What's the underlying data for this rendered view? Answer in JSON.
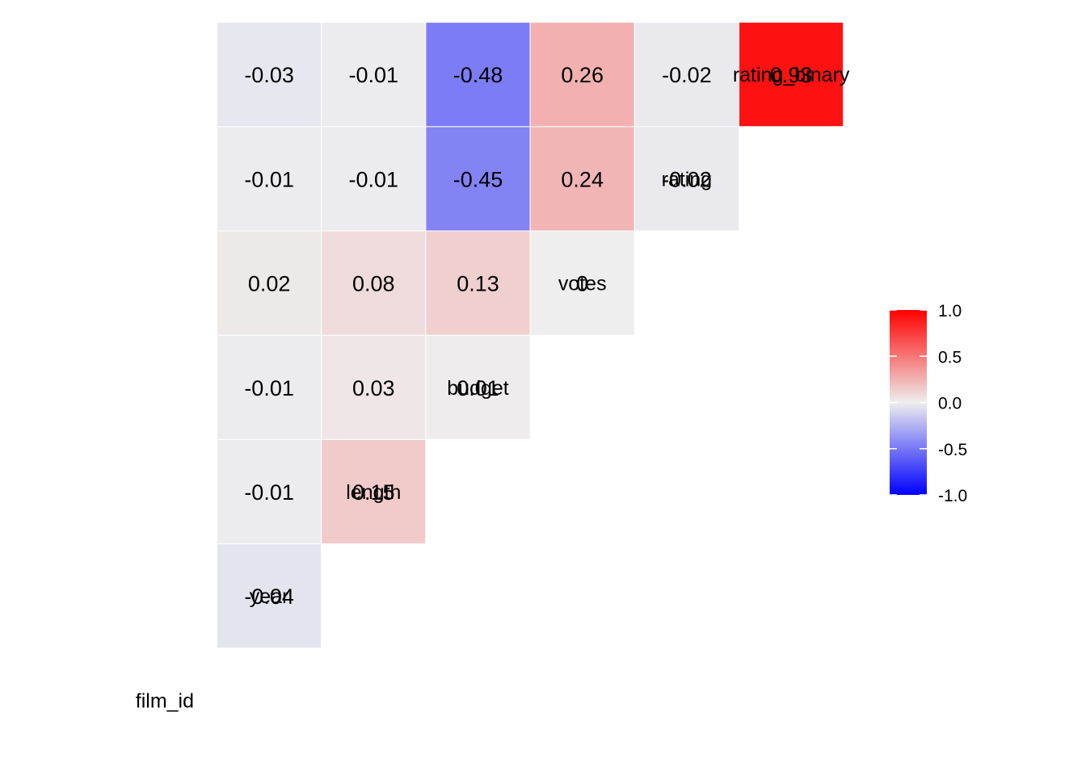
{
  "chart_data": {
    "type": "heatmap",
    "variables": [
      "film_id",
      "year",
      "length",
      "budget",
      "votes",
      "rating",
      "rating_binary"
    ],
    "cells": [
      {
        "row": "year",
        "col": "film_id",
        "value": -0.04,
        "label": "-0.04"
      },
      {
        "row": "length",
        "col": "film_id",
        "value": -0.01,
        "label": "-0.01"
      },
      {
        "row": "budget",
        "col": "film_id",
        "value": -0.01,
        "label": "-0.01"
      },
      {
        "row": "votes",
        "col": "film_id",
        "value": 0.02,
        "label": "0.02"
      },
      {
        "row": "rating",
        "col": "film_id",
        "value": -0.01,
        "label": "-0.01"
      },
      {
        "row": "rating_binary",
        "col": "film_id",
        "value": -0.03,
        "label": "-0.03"
      },
      {
        "row": "length",
        "col": "year",
        "value": 0.15,
        "label": "0.15"
      },
      {
        "row": "budget",
        "col": "year",
        "value": 0.03,
        "label": "0.03"
      },
      {
        "row": "votes",
        "col": "year",
        "value": 0.08,
        "label": "0.08"
      },
      {
        "row": "rating",
        "col": "year",
        "value": -0.01,
        "label": "-0.01"
      },
      {
        "row": "rating_binary",
        "col": "year",
        "value": -0.01,
        "label": "-0.01"
      },
      {
        "row": "budget",
        "col": "length",
        "value": 0.01,
        "label": "0.01"
      },
      {
        "row": "votes",
        "col": "length",
        "value": 0.13,
        "label": "0.13"
      },
      {
        "row": "rating",
        "col": "length",
        "value": -0.45,
        "label": "-0.45"
      },
      {
        "row": "rating_binary",
        "col": "length",
        "value": -0.48,
        "label": "-0.48"
      },
      {
        "row": "votes",
        "col": "budget",
        "value": 0,
        "label": "0"
      },
      {
        "row": "rating",
        "col": "budget",
        "value": 0.24,
        "label": "0.24"
      },
      {
        "row": "rating_binary",
        "col": "budget",
        "value": 0.26,
        "label": "0.26"
      },
      {
        "row": "rating",
        "col": "votes",
        "value": -0.02,
        "label": "-0.02"
      },
      {
        "row": "rating_binary",
        "col": "votes",
        "value": -0.02,
        "label": "-0.02"
      },
      {
        "row": "rating_binary",
        "col": "rating",
        "value": 0.93,
        "label": "0.93"
      }
    ],
    "color_scale": {
      "low": "#0000ff",
      "mid": "#eeeeee",
      "high": "#ff0000",
      "limits": [
        -1,
        1
      ]
    },
    "legend": {
      "position": "right",
      "ticks": [
        1.0,
        0.5,
        0.0,
        -0.5,
        -1.0
      ],
      "tick_labels": [
        "1.0",
        "0.5",
        "0.0",
        "-0.5",
        "-1.0"
      ]
    },
    "grid": false
  }
}
